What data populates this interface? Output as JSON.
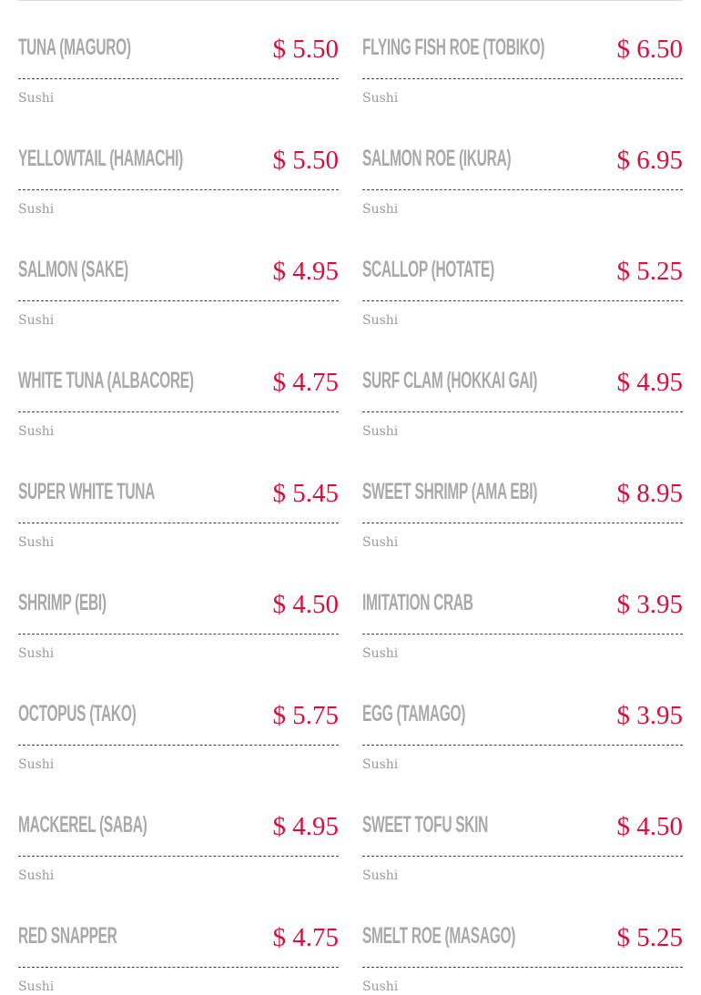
{
  "columns": [
    [
      {
        "name": "TUNA (MAGURO)",
        "price": "$ 5.50",
        "category": "Sushi"
      },
      {
        "name": "YELLOWTAIL (HAMACHI)",
        "price": "$ 5.50",
        "category": "Sushi"
      },
      {
        "name": "SALMON (SAKE)",
        "price": "$ 4.95",
        "category": "Sushi"
      },
      {
        "name": "WHITE TUNA (ALBACORE)",
        "price": "$ 4.75",
        "category": "Sushi"
      },
      {
        "name": "SUPER WHITE TUNA",
        "price": "$ 5.45",
        "category": "Sushi"
      },
      {
        "name": "SHRIMP (EBI)",
        "price": "$ 4.50",
        "category": "Sushi"
      },
      {
        "name": "OCTOPUS (TAKO)",
        "price": "$ 5.75",
        "category": "Sushi"
      },
      {
        "name": "MACKEREL (SABA)",
        "price": "$ 4.95",
        "category": "Sushi"
      },
      {
        "name": "RED SNAPPER",
        "price": "$ 4.75",
        "category": "Sushi"
      }
    ],
    [
      {
        "name": "FLYING FISH ROE (TOBIKO)",
        "price": "$ 6.50",
        "category": "Sushi"
      },
      {
        "name": "SALMON ROE (IKURA)",
        "price": "$ 6.95",
        "category": "Sushi"
      },
      {
        "name": "SCALLOP (HOTATE)",
        "price": "$ 5.25",
        "category": "Sushi"
      },
      {
        "name": "SURF CLAM (HOKKAI GAI)",
        "price": "$ 4.95",
        "category": "Sushi"
      },
      {
        "name": "SWEET SHRIMP (AMA EBI)",
        "price": "$ 8.95",
        "category": "Sushi"
      },
      {
        "name": "IMITATION CRAB",
        "price": "$ 3.95",
        "category": "Sushi"
      },
      {
        "name": "EGG (TAMAGO)",
        "price": "$ 3.95",
        "category": "Sushi"
      },
      {
        "name": "SWEET TOFU SKIN",
        "price": "$ 4.50",
        "category": "Sushi"
      },
      {
        "name": "SMELT ROE (MASAGO)",
        "price": "$ 5.25",
        "category": "Sushi"
      }
    ]
  ]
}
